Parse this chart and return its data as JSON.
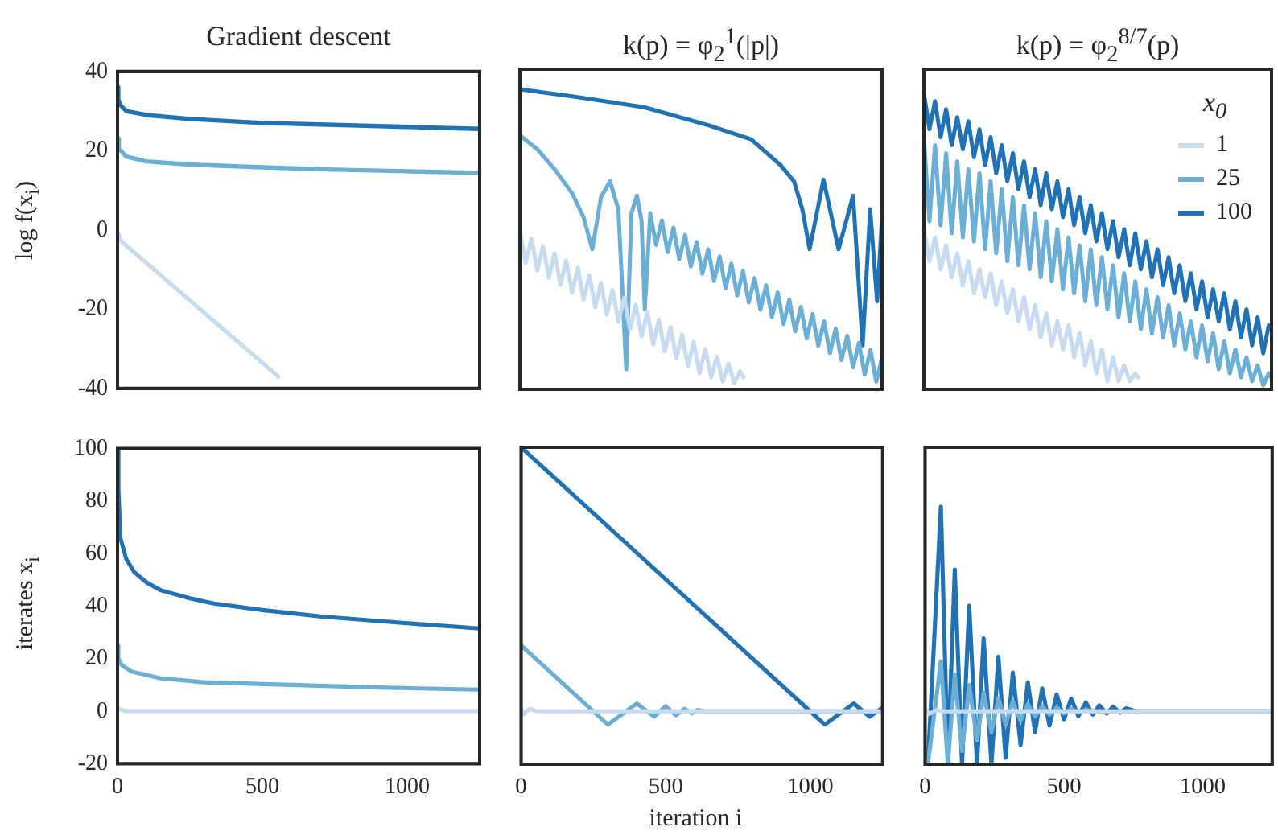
{
  "chart_data": [
    {
      "type": "line",
      "title": "Gradient descent",
      "ylabel": "log f(x$_{i}$)",
      "xlim": [
        0,
        1250
      ],
      "xticks": [
        0,
        500,
        1000
      ],
      "ylim": [
        -40,
        40
      ],
      "yticks": [
        -40,
        -20,
        0,
        20,
        40
      ],
      "tick_labels": "y",
      "series": [
        {
          "color": "#c6dbef",
          "x": [
            0,
            15,
            555
          ],
          "values": [
            -0.5,
            -3,
            -37
          ]
        },
        {
          "color": "#6baed6",
          "x": [
            0,
            5,
            30,
            100,
            250,
            500,
            750,
            1000,
            1250
          ],
          "values": [
            23,
            20.5,
            18.5,
            17.3,
            16.5,
            15.8,
            15.2,
            14.8,
            14.4
          ]
        },
        {
          "color": "#2171b5",
          "x": [
            0,
            3,
            10,
            30,
            100,
            250,
            500,
            750,
            1000,
            1250
          ],
          "values": [
            36,
            33,
            31.5,
            30,
            29,
            28,
            27,
            26.5,
            26,
            25.5
          ]
        }
      ]
    },
    {
      "type": "line",
      "title": "k(p) = φ$_{2}$$^{1}$(|p|)",
      "xlim": [
        0,
        1250
      ],
      "xticks": [
        0,
        500,
        1000
      ],
      "ylim": [
        -40,
        40
      ],
      "yticks": [
        -40,
        -20,
        0,
        20,
        40
      ],
      "tick_labels": false,
      "series": [
        {
          "color": "#c6dbef",
          "x": [
            0,
            20,
            40,
            60,
            80,
            100,
            120,
            140,
            160,
            180,
            200,
            220,
            240,
            260,
            280,
            300,
            320,
            340,
            360,
            380,
            400,
            420,
            440,
            460,
            480,
            500,
            520,
            540,
            560,
            580,
            600,
            620,
            640,
            660,
            680,
            700,
            720,
            740,
            760,
            772
          ],
          "values": [
            -0.5,
            -8.4,
            -2.3,
            -10.3,
            -4.2,
            -12.1,
            -6,
            -13.9,
            -7.9,
            -15.8,
            -9.7,
            -17.6,
            -11.5,
            -19.5,
            -13.4,
            -21.3,
            -15.2,
            -23.1,
            -17.1,
            -25,
            -18.9,
            -26.8,
            -20.7,
            -28.7,
            -22.6,
            -30.5,
            -24.4,
            -32.3,
            -26.3,
            -34.2,
            -28.1,
            -36,
            -29.9,
            -37,
            -31.8,
            -38,
            -33.6,
            -38.5,
            -35.5,
            -37
          ]
        },
        {
          "color": "#6baed6",
          "x": [
            0,
            60,
            120,
            180,
            220,
            250,
            280,
            311,
            340,
            367,
            385,
            404,
            420,
            431,
            450,
            470,
            490,
            510,
            530,
            550,
            570,
            590,
            610,
            630,
            650,
            670,
            690,
            710,
            730,
            750,
            770,
            790,
            810,
            830,
            850,
            870,
            890,
            910,
            930,
            950,
            970,
            990,
            1010,
            1030,
            1050,
            1070,
            1090,
            1110,
            1130,
            1150,
            1170,
            1190,
            1210,
            1230,
            1250
          ],
          "values": [
            23.5,
            20,
            15,
            9,
            3,
            -5,
            8,
            12,
            5,
            -35,
            4,
            8.4,
            2,
            -20,
            4,
            -3.9,
            2.2,
            -5.7,
            0.4,
            -7.5,
            -1.4,
            -9.3,
            -3.2,
            -11.1,
            -5,
            -12.9,
            -6.8,
            -14.7,
            -8.6,
            -16.5,
            -10.4,
            -18.3,
            -12.2,
            -20.1,
            -14,
            -21.9,
            -15.8,
            -23.7,
            -17.6,
            -25.5,
            -19.4,
            -27.3,
            -21.2,
            -29.1,
            -23,
            -30.9,
            -24.8,
            -32.7,
            -26.6,
            -34.5,
            -28.4,
            -36.3,
            -30.2,
            -38.1,
            -32
          ]
        },
        {
          "color": "#2171b5",
          "x": [
            0,
            200,
            428,
            650,
            798,
            900,
            946,
            975,
            1000,
            1048,
            1100,
            1150,
            1183,
            1209,
            1233,
            1250
          ],
          "values": [
            35,
            33,
            30.5,
            26,
            22.5,
            16,
            12,
            5,
            -5,
            12.4,
            -5,
            8.4,
            -29,
            5,
            -18,
            3
          ]
        }
      ]
    },
    {
      "type": "line",
      "title": "k(p) = φ$_{2}$$^{8/7}$(p)",
      "legend": "top right",
      "legend_title": "x$_{0}$",
      "xlim": [
        0,
        1250
      ],
      "xticks": [
        0,
        500,
        1000
      ],
      "ylim": [
        -40,
        40
      ],
      "yticks": [
        -40,
        -20,
        0,
        20,
        40
      ],
      "tick_labels": false,
      "x": [
        0,
        20,
        40,
        60,
        80,
        100,
        120,
        140,
        160,
        180,
        200,
        220,
        240,
        260,
        280,
        300,
        320,
        340,
        360,
        380,
        400,
        420,
        440,
        460,
        480,
        500,
        520,
        540,
        560,
        580,
        600,
        620,
        640,
        660,
        680,
        700,
        720,
        740,
        760,
        780,
        800,
        820,
        840,
        860,
        880,
        900,
        920,
        940,
        960,
        980,
        1000,
        1020,
        1040,
        1060,
        1080,
        1100,
        1120,
        1140,
        1160,
        1180,
        1200,
        1220,
        1240,
        1250
      ],
      "series": [
        {
          "name": "1",
          "color": "#c6dbef",
          "x": [
            0,
            20,
            40,
            60,
            80,
            100,
            120,
            140,
            160,
            180,
            200,
            220,
            240,
            260,
            280,
            300,
            320,
            340,
            360,
            380,
            400,
            420,
            440,
            460,
            480,
            500,
            520,
            540,
            560,
            580,
            600,
            620,
            640,
            660,
            680,
            700,
            720,
            740,
            760,
            770
          ],
          "values": [
            0,
            -8,
            -2,
            -10,
            -4,
            -12,
            -6,
            -14,
            -8,
            -16,
            -10,
            -17,
            -11,
            -19,
            -13,
            -21,
            -15,
            -23,
            -17,
            -25,
            -19,
            -27,
            -21,
            -29,
            -23,
            -30,
            -24,
            -32,
            -26,
            -34,
            -28,
            -36,
            -30,
            -38,
            -32,
            -38,
            -34,
            -38,
            -36,
            -37
          ]
        },
        {
          "name": "25",
          "color": "#6baed6",
          "values": [
            23,
            2,
            21,
            1,
            19,
            -1,
            17,
            -2,
            15,
            -3,
            14,
            -5,
            12,
            -6,
            10,
            -8,
            8,
            -9,
            6,
            -10,
            4,
            -12,
            2,
            -13,
            0,
            -15,
            -2,
            -16,
            -4,
            -18,
            -5,
            -19,
            -7,
            -20,
            -9,
            -22,
            -11,
            -23,
            -13,
            -25,
            -15,
            -26,
            -17,
            -27,
            -19,
            -29,
            -21,
            -30,
            -23,
            -32,
            -24,
            -33,
            -26,
            -35,
            -28,
            -36,
            -30,
            -37,
            -32,
            -38,
            -34,
            -39,
            -36,
            -37
          ]
        },
        {
          "name": "100",
          "color": "#2171b5",
          "values": [
            34,
            25,
            32,
            23,
            30,
            21,
            28,
            20,
            27,
            18,
            25,
            16,
            23,
            14,
            21,
            12,
            19,
            10,
            17,
            8,
            15,
            6,
            14,
            5,
            12,
            3,
            10,
            1,
            8,
            -1,
            6,
            -3,
            4,
            -5,
            2,
            -7,
            0,
            -9,
            -1,
            -10,
            -3,
            -12,
            -5,
            -14,
            -7,
            -16,
            -9,
            -18,
            -11,
            -20,
            -13,
            -22,
            -15,
            -23,
            -16,
            -25,
            -18,
            -27,
            -20,
            -29,
            -22,
            -31,
            -24,
            -25
          ]
        }
      ]
    },
    {
      "type": "line",
      "ylabel": "iterates x$_{i}$",
      "xlim": [
        0,
        1250
      ],
      "xticks": [
        0,
        500,
        1000
      ],
      "ylim": [
        -20,
        100
      ],
      "yticks": [
        -20,
        0,
        20,
        40,
        60,
        80,
        100
      ],
      "series": [
        {
          "color": "#c6dbef",
          "x": [
            0,
            30,
            1250
          ],
          "values": [
            1,
            0,
            0
          ]
        },
        {
          "color": "#6baed6",
          "x": [
            0,
            3,
            15,
            50,
            150,
            300,
            600,
            900,
            1250
          ],
          "values": [
            25,
            20,
            17.5,
            15,
            12.5,
            11,
            10,
            9,
            8.2
          ]
        },
        {
          "color": "#2171b5",
          "x": [
            0,
            3,
            10,
            30,
            57,
            100,
            150,
            250,
            333,
            500,
            706,
            1000,
            1250
          ],
          "values": [
            100,
            85,
            66,
            58,
            53,
            49,
            46,
            43,
            41,
            38.5,
            36,
            33.5,
            31.5
          ]
        }
      ]
    },
    {
      "type": "line",
      "xlabel": "iteration i",
      "xlim": [
        0,
        1250
      ],
      "xticks": [
        0,
        500,
        1000
      ],
      "ylim": [
        -20,
        100
      ],
      "yticks": [
        -20,
        0,
        20,
        40,
        60,
        80,
        100
      ],
      "tick_labels": "x",
      "series": [
        {
          "color": "#c6dbef",
          "x": [
            0,
            10,
            30,
            60,
            1250
          ],
          "values": [
            1,
            -1,
            1,
            0,
            0
          ]
        },
        {
          "color": "#6baed6",
          "x": [
            0,
            300,
            400,
            460,
            500,
            535,
            565,
            590,
            610,
            640,
            1250
          ],
          "values": [
            25,
            -5,
            3,
            -2,
            2,
            -1.5,
            1,
            -0.7,
            0.6,
            0,
            0
          ]
        },
        {
          "color": "#2171b5",
          "x": [
            0,
            1050,
            1150,
            1205,
            1250
          ],
          "values": [
            100,
            -5,
            3,
            -2,
            1.5
          ]
        }
      ]
    },
    {
      "type": "line",
      "xlim": [
        0,
        1250
      ],
      "xticks": [
        0,
        500,
        1000
      ],
      "ylim": [
        -20,
        100
      ],
      "yticks": [
        -20,
        0,
        20,
        40,
        60,
        80,
        100
      ],
      "tick_labels": "x",
      "series": [
        {
          "color": "#c6dbef",
          "x": [
            0,
            15,
            40,
            70,
            1250
          ],
          "values": [
            1,
            -1,
            0.5,
            0,
            0
          ]
        },
        {
          "color": "#6baed6",
          "x": [
            10,
            57,
            82,
            107,
            133,
            159,
            187,
            211,
            239,
            264,
            290,
            316,
            344,
            370,
            396,
            422,
            448,
            474,
            500,
            526,
            552,
            579,
            610,
            1250
          ],
          "values": [
            -20,
            19,
            -20,
            14,
            -15,
            10,
            -11,
            7,
            -8,
            5,
            -5,
            3.7,
            -3.5,
            2.7,
            -2,
            2,
            -1.3,
            1.5,
            -0.8,
            1,
            -0.4,
            0.7,
            0,
            0
          ]
        },
        {
          "color": "#2171b5",
          "x": [
            10,
            57,
            82,
            107,
            133,
            159,
            187,
            211,
            239,
            264,
            290,
            316,
            344,
            370,
            396,
            422,
            448,
            474,
            500,
            526,
            552,
            579,
            604,
            627,
            654,
            677,
            702,
            724,
            760,
            1250
          ],
          "values": [
            -20,
            77.5,
            -20,
            53.7,
            -20,
            40,
            -20,
            27.7,
            -20,
            20.7,
            -17.6,
            14.7,
            -12.7,
            11,
            -7.8,
            8.7,
            -5.4,
            6.4,
            -3,
            4.8,
            -1.8,
            3.4,
            -1.2,
            2.3,
            -0.8,
            1.8,
            -0.5,
            1.2,
            0,
            0
          ]
        }
      ]
    }
  ]
}
